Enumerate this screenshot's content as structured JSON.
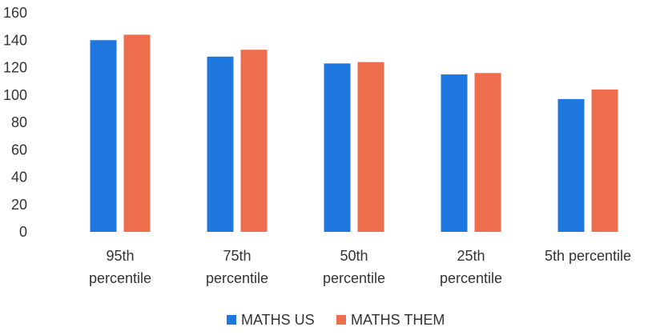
{
  "chart_data": {
    "type": "bar",
    "title": "",
    "xlabel": "",
    "ylabel": "",
    "ylim": [
      0,
      160
    ],
    "yticks": [
      0,
      20,
      40,
      60,
      80,
      100,
      120,
      140,
      160
    ],
    "grid": false,
    "legend_position": "bottom",
    "categories": [
      [
        "95th",
        "percentile"
      ],
      [
        "75th",
        "percentile"
      ],
      [
        "50th",
        "percentile"
      ],
      [
        "25th",
        "percentile"
      ],
      [
        "5th percentile"
      ]
    ],
    "series": [
      {
        "name": "MATHS US",
        "color": "#1f77e0",
        "values": [
          140,
          128,
          123,
          115,
          97
        ]
      },
      {
        "name": "MATHS THEM",
        "color": "#ee6d4d",
        "values": [
          144,
          133,
          124,
          116,
          104
        ]
      }
    ]
  }
}
